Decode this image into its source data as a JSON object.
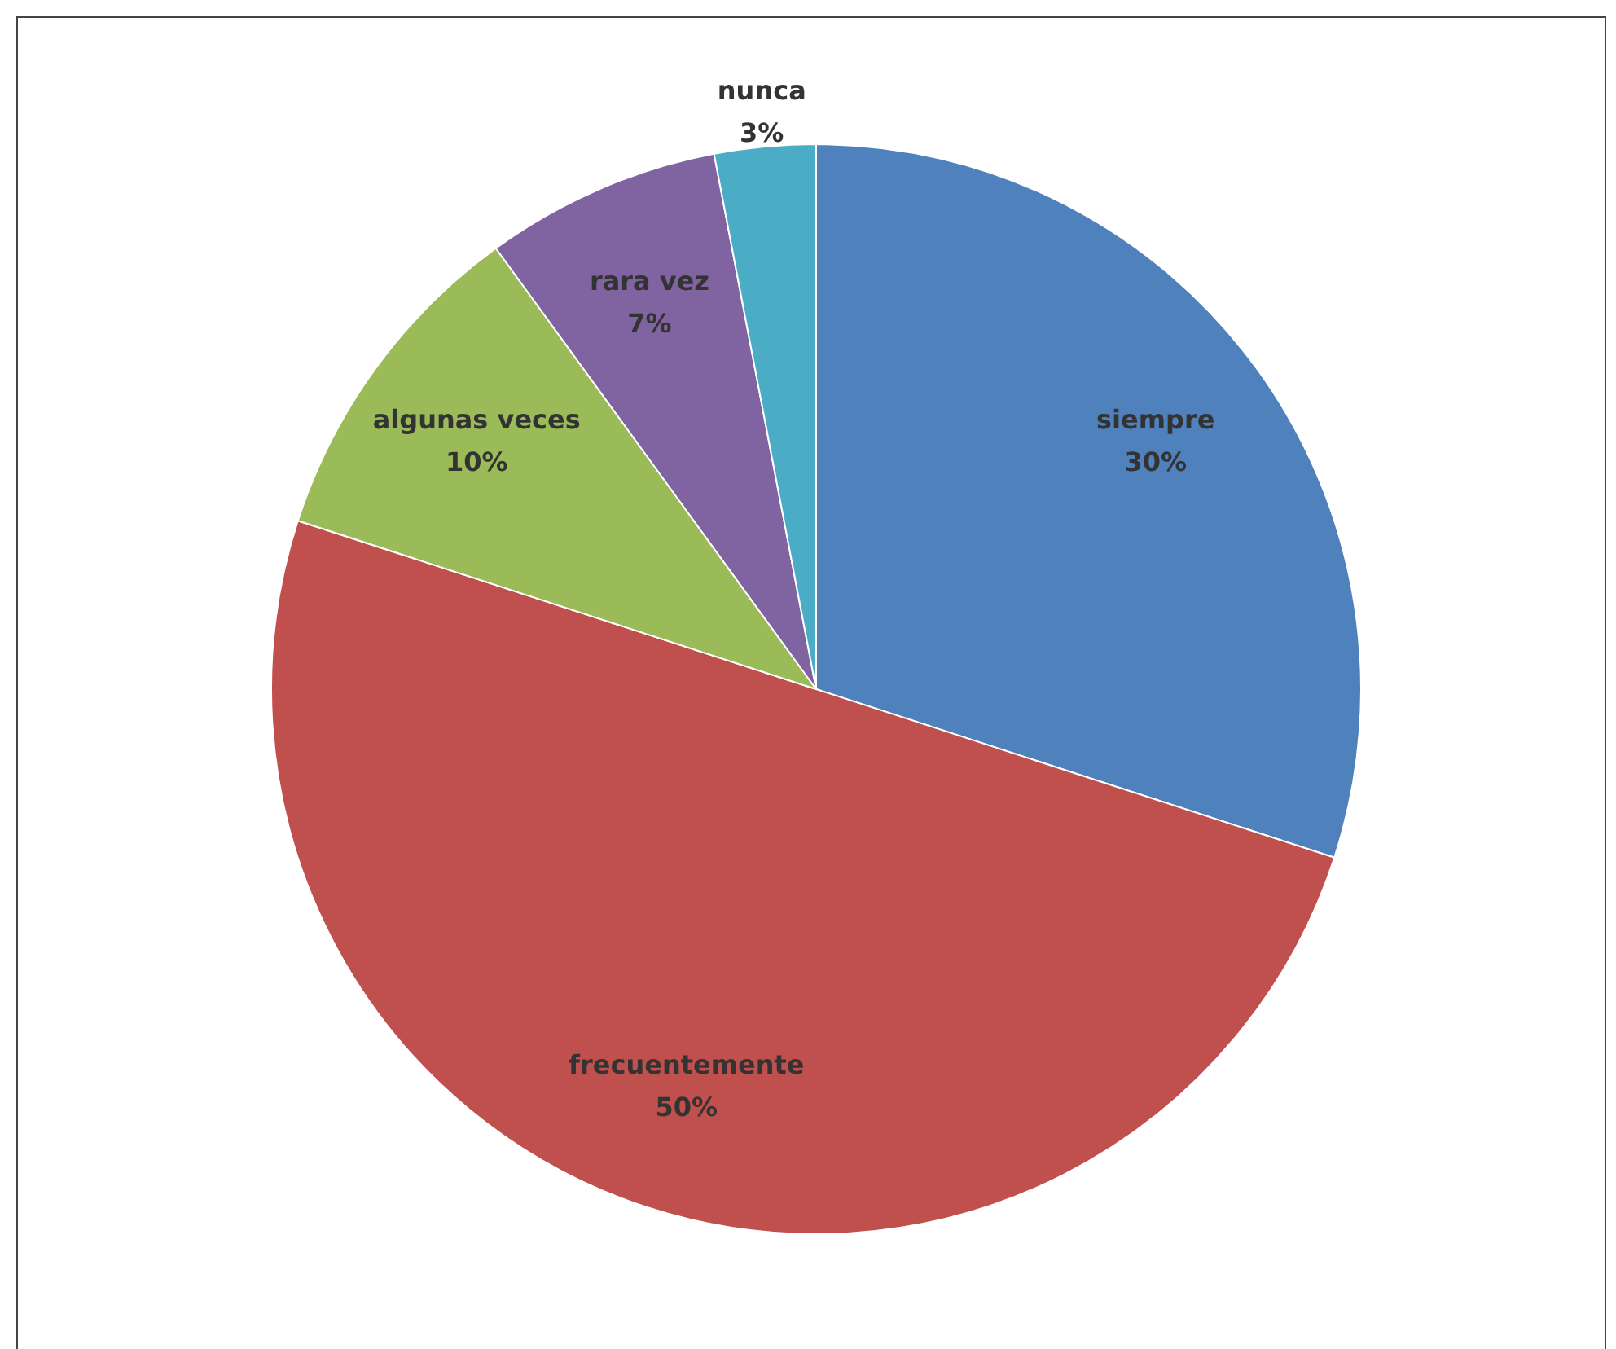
{
  "chart_data": {
    "type": "pie",
    "categories": [
      "siempre",
      "frecuentemente",
      "algunas veces",
      "rara vez",
      "nunca"
    ],
    "values": [
      30,
      50,
      10,
      7,
      3
    ],
    "colors": [
      "#4f81bd",
      "#c0504d",
      "#9bbb59",
      "#8064a2",
      "#4bacc6"
    ],
    "value_labels": [
      "30%",
      "50%",
      "10%",
      "7%",
      "3%"
    ],
    "legend": false
  }
}
